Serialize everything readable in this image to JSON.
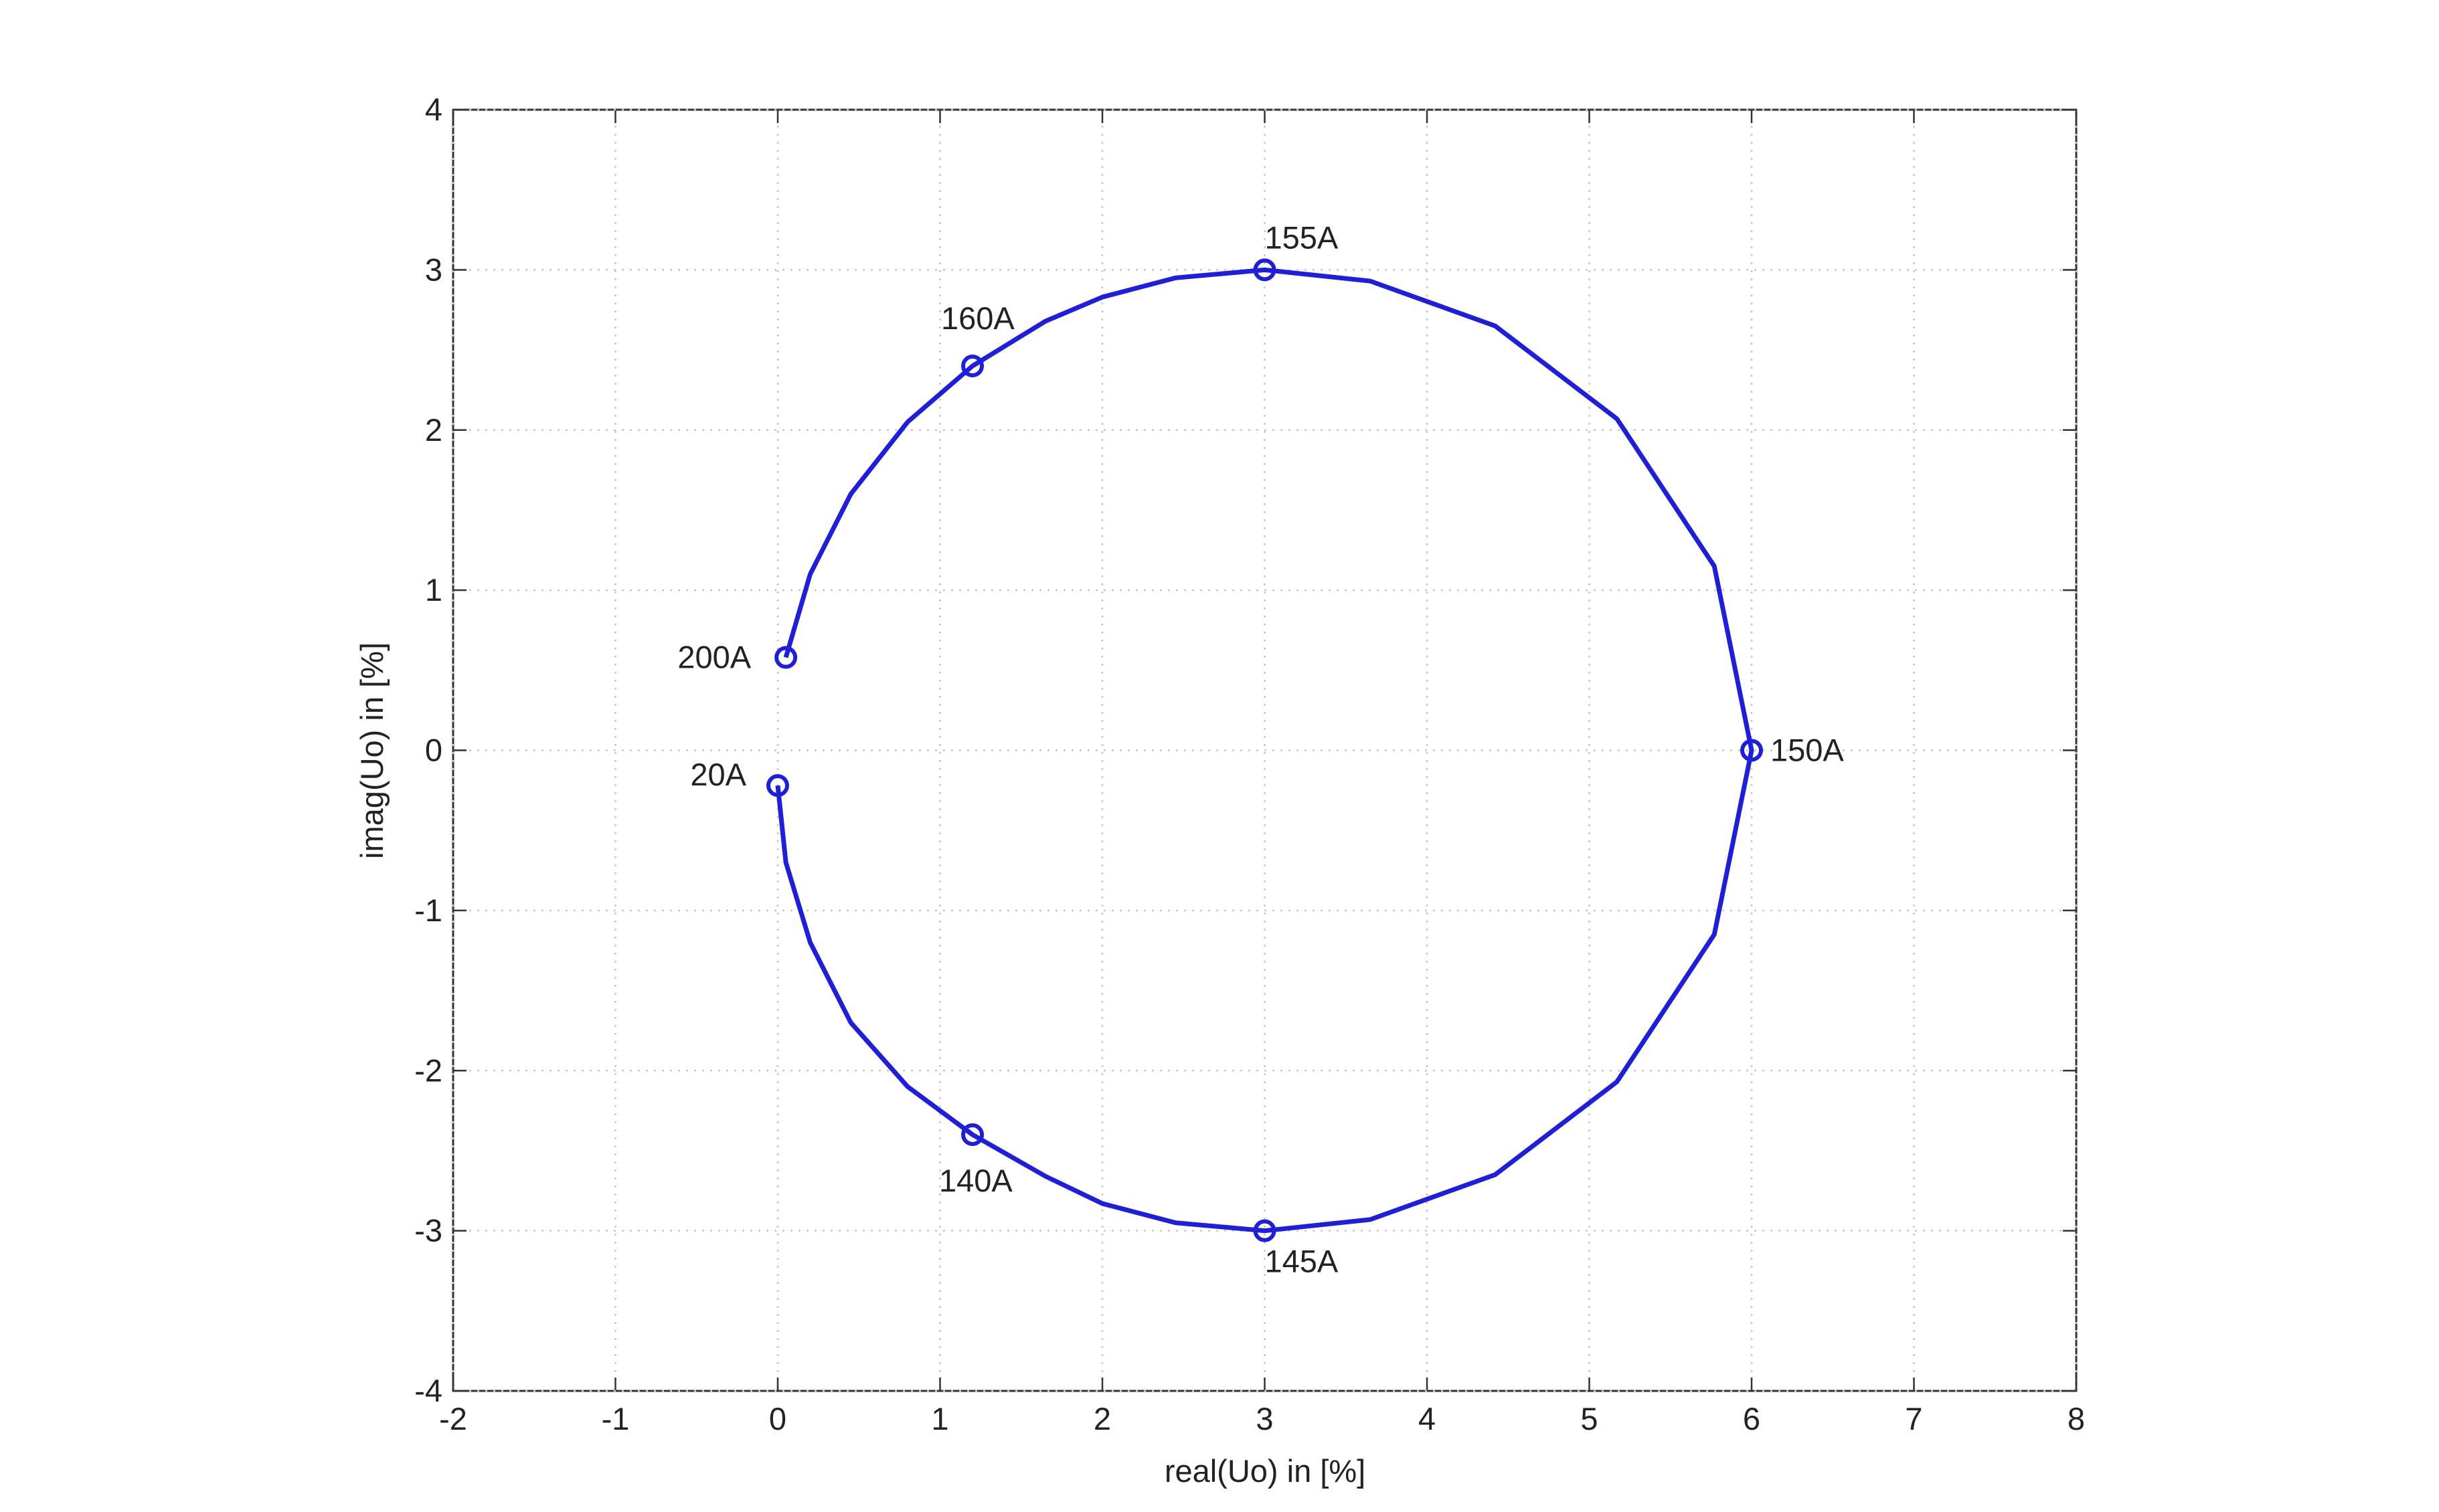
{
  "chart_data": {
    "type": "line",
    "xlabel": "real(Uo) in [%]",
    "ylabel": "imag(Uo) in [%]",
    "xlim": [
      -2,
      8
    ],
    "ylim": [
      -4,
      4
    ],
    "xticks": [
      -2,
      -1,
      0,
      1,
      2,
      3,
      4,
      5,
      6,
      7,
      8
    ],
    "yticks": [
      -4,
      -3,
      -2,
      -1,
      0,
      1,
      2,
      3,
      4
    ],
    "grid": true,
    "series": [
      {
        "color": "#1f1fd6",
        "x": [
          0.0,
          0.05,
          0.2,
          0.45,
          0.8,
          1.2,
          1.65,
          2.0,
          2.45,
          3.0,
          3.65,
          4.42,
          5.17,
          5.77,
          6.0,
          5.77,
          5.17,
          4.42,
          3.65,
          3.0,
          2.45,
          2.0,
          1.65,
          1.2,
          0.8,
          0.45,
          0.2,
          0.05
        ],
        "values": [
          -0.22,
          -0.7,
          -1.2,
          -1.7,
          -2.1,
          -2.4,
          -2.66,
          -2.83,
          -2.95,
          -3.0,
          -2.93,
          -2.65,
          -2.07,
          -1.15,
          0.0,
          1.15,
          2.07,
          2.65,
          2.93,
          3.0,
          2.95,
          2.83,
          2.68,
          2.4,
          2.05,
          1.6,
          1.1,
          0.58
        ]
      }
    ],
    "markers": {
      "color": "#1f1fd6",
      "labels": [
        "20A",
        "140A",
        "145A",
        "150A",
        "155A",
        "160A",
        "200A"
      ],
      "x": [
        0.0,
        1.2,
        3.0,
        6.0,
        3.0,
        1.2,
        0.05
      ],
      "y": [
        -0.22,
        -2.4,
        -3.0,
        0.0,
        3.0,
        2.4,
        0.58
      ]
    }
  }
}
